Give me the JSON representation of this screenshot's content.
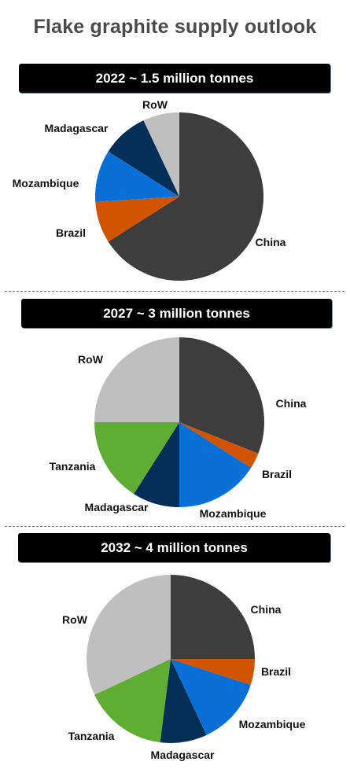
{
  "page": {
    "title": "Flake graphite supply outlook"
  },
  "colors": {
    "China": "#3d3d3d",
    "Brazil": "#d35400",
    "Mozambique": "#0b6fd8",
    "Madagascar": "#032e58",
    "Tanzania": "#5fae33",
    "RoW": "#bfbfbf"
  },
  "chart_data": [
    {
      "type": "pie",
      "title": "2022 ~ 1.5 million tonnes",
      "slices": [
        {
          "label": "China",
          "value": 66
        },
        {
          "label": "Brazil",
          "value": 8
        },
        {
          "label": "Mozambique",
          "value": 10
        },
        {
          "label": "Madagascar",
          "value": 9
        },
        {
          "label": "RoW",
          "value": 7
        }
      ]
    },
    {
      "type": "pie",
      "title": "2027 ~ 3 million tonnes",
      "slices": [
        {
          "label": "China",
          "value": 31
        },
        {
          "label": "Brazil",
          "value": 3
        },
        {
          "label": "Mozambique",
          "value": 16
        },
        {
          "label": "Madagascar",
          "value": 9
        },
        {
          "label": "Tanzania",
          "value": 16
        },
        {
          "label": "RoW",
          "value": 25
        }
      ]
    },
    {
      "type": "pie",
      "title": "2032 ~ 4 million tonnes",
      "slices": [
        {
          "label": "China",
          "value": 25
        },
        {
          "label": "Brazil",
          "value": 5
        },
        {
          "label": "Mozambique",
          "value": 13
        },
        {
          "label": "Madagascar",
          "value": 9
        },
        {
          "label": "Tanzania",
          "value": 16
        },
        {
          "label": "RoW",
          "value": 32
        }
      ]
    }
  ]
}
